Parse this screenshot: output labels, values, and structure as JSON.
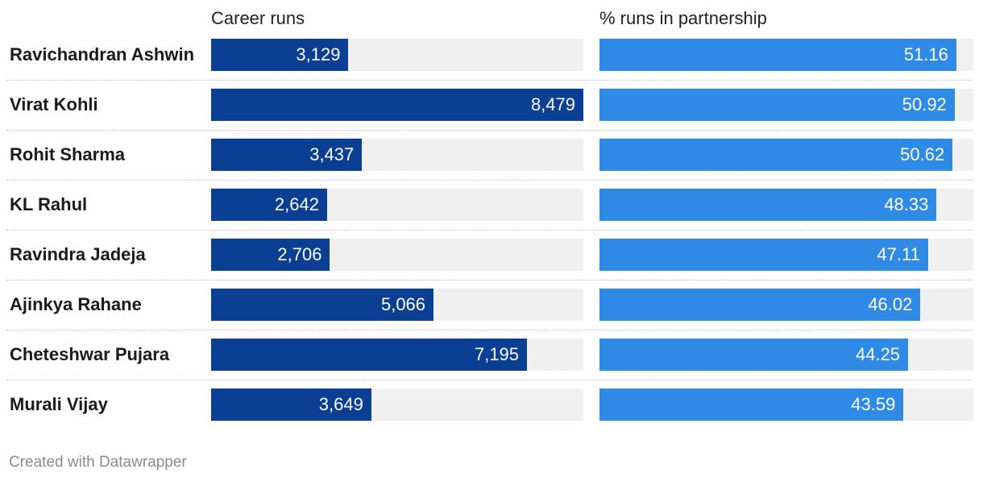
{
  "chart_data": {
    "type": "bar",
    "title": "",
    "categories": [
      "Ravichandran Ashwin",
      "Virat Kohli",
      "Rohit Sharma",
      "KL Rahul",
      "Ravindra Jadeja",
      "Ajinkya Rahane",
      "Cheteshwar Pujara",
      "Murali Vijay"
    ],
    "series": [
      {
        "name": "Career runs",
        "values": [
          3129,
          8479,
          3437,
          2642,
          2706,
          5066,
          7195,
          3649
        ],
        "labels": [
          "3,129",
          "8,479",
          "3,437",
          "2,642",
          "2,706",
          "5,066",
          "7,195",
          "3,649"
        ],
        "xlim": [
          0,
          8479
        ],
        "color": "#0a3f94"
      },
      {
        "name": "% runs in partnership",
        "values": [
          51.16,
          50.92,
          50.62,
          48.33,
          47.11,
          46.02,
          44.25,
          43.59
        ],
        "labels": [
          "51.16",
          "50.92",
          "50.62",
          "48.33",
          "47.11",
          "46.02",
          "44.25",
          "43.59"
        ],
        "xlim": [
          0,
          53.6
        ],
        "color": "#2f8ae6"
      }
    ],
    "orientation": "horizontal",
    "track_color": "#f0f0f0"
  },
  "footer": "Created with Datawrapper"
}
